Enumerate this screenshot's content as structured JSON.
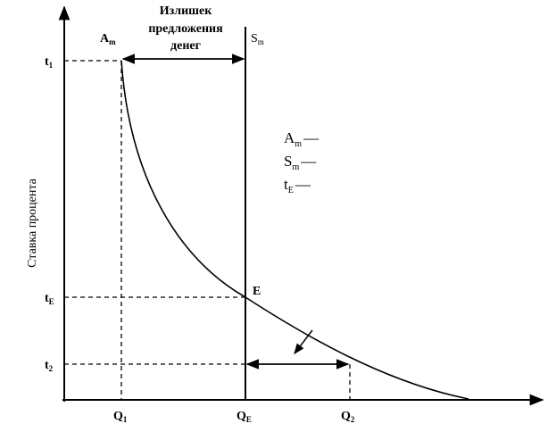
{
  "annotation": {
    "lines": [
      "Излишек",
      "предложения",
      "денег"
    ]
  },
  "axis_label": "Ставка процента",
  "curve_labels": {
    "demand": {
      "main": "A",
      "sub": "m"
    },
    "supply": {
      "main": "S",
      "sub": "m"
    }
  },
  "equilibrium_label": "E",
  "y_labels": [
    {
      "main": "t",
      "sub": "1"
    },
    {
      "main": "t",
      "sub": "E"
    },
    {
      "main": "t",
      "sub": "2"
    }
  ],
  "x_labels": [
    {
      "main": "Q",
      "sub": "1"
    },
    {
      "main": "Q",
      "sub": "E"
    },
    {
      "main": "Q",
      "sub": "2"
    }
  ],
  "legend": [
    {
      "main": "A",
      "sub": "m",
      "dash": "—"
    },
    {
      "main": "S",
      "sub": "m",
      "dash": "—"
    },
    {
      "main": "t",
      "sub": "E",
      "dash": "—"
    }
  ]
}
